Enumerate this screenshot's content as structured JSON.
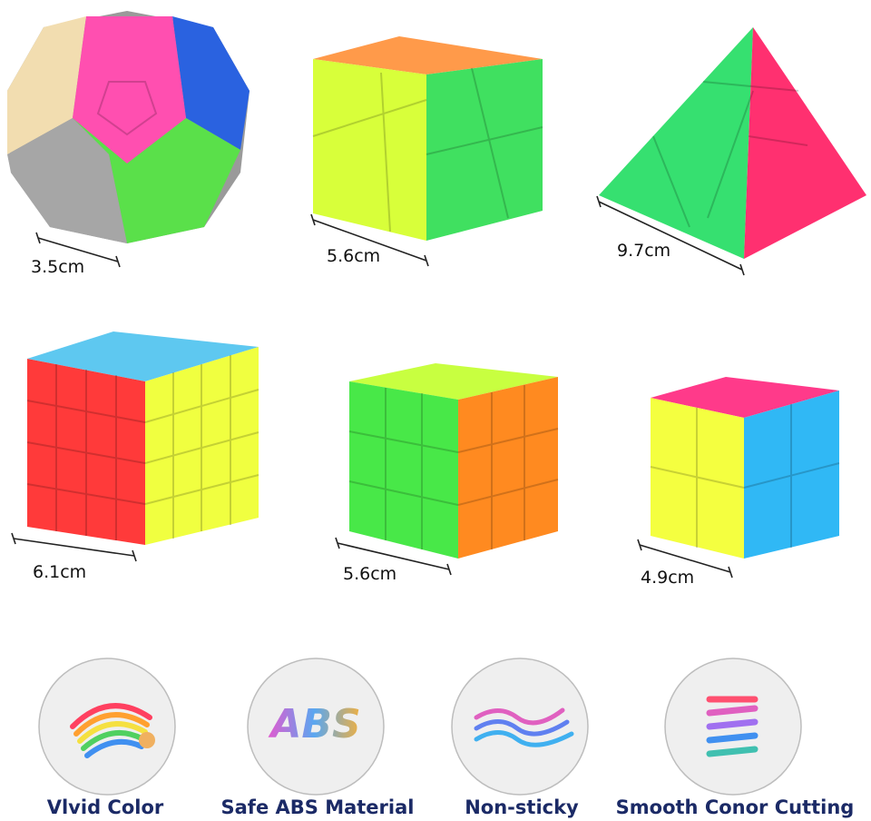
{
  "products": [
    {
      "size": "3.5cm"
    },
    {
      "size": "5.6cm"
    },
    {
      "size": "9.7cm"
    },
    {
      "size": "6.1cm"
    },
    {
      "size": "5.6cm"
    },
    {
      "size": "4.9cm"
    }
  ],
  "features": [
    {
      "label": "Vlvid Color"
    },
    {
      "label": "Safe ABS Material",
      "icon_text": "ABS"
    },
    {
      "label": "Non-sticky"
    },
    {
      "label": "Smooth Conor Cutting"
    }
  ]
}
